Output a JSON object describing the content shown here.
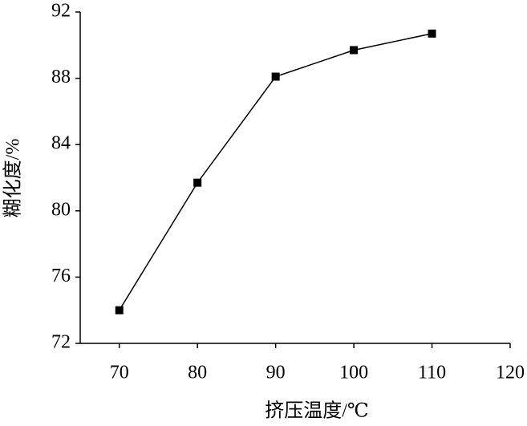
{
  "chart_data": {
    "type": "line",
    "x_label": "挤压温度/℃",
    "y_label": "糊化度/%",
    "x": [
      70,
      80,
      90,
      100,
      110
    ],
    "series": [
      {
        "color": "#000000",
        "values": [
          74.0,
          81.7,
          88.1,
          89.7,
          90.7
        ]
      }
    ],
    "xlim": [
      65,
      120
    ],
    "xticks": [
      70,
      80,
      90,
      100,
      110,
      120
    ],
    "ylim": [
      72,
      92
    ],
    "yticks": [
      72,
      76,
      80,
      84,
      88,
      92
    ],
    "grid": false
  }
}
